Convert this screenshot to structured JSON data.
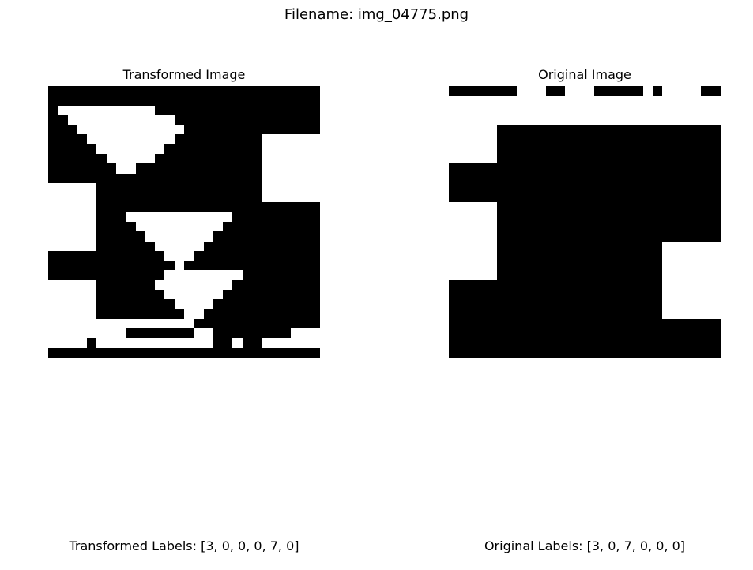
{
  "suptitle": "Filename: img_04775.png",
  "panels": {
    "transformed": {
      "title": "Transformed Image",
      "caption": "Transformed Labels: [3, 0, 0, 0, 7, 0]",
      "rows": [
        "1111111111111111111111111111",
        "1111111111111111111111111111",
        "1000000000011111111111111111",
        "1100000000000111111111111111",
        "1110000000000011111111111111",
        "1111000000000111111111000000",
        "1111100000001111111111000000",
        "1111110000011111111111000000",
        "1111111001111111111111000000",
        "1111111111111111111111000000",
        "0000011111111111111111000000",
        "0000011111111111111111000000",
        "0000011111111111111111111111",
        "0000011100000000000111111111",
        "0000011110000000001111111111",
        "0000011111000000011111111111",
        "0000011111100000111111111111",
        "1111111111110001111111111111",
        "1111111111111011111111111111",
        "1111111111110000000011111111",
        "0000011111100000000111111111",
        "0000011111110000001111111111",
        "0000011111111000011111111111",
        "0000011111111100111111111111",
        "0000000000000001111111111111",
        "0000000011111110011111111000",
        "0000100000000000011011000000",
        "1111111111111111111111111111"
      ]
    },
    "original": {
      "title": "Original Image",
      "caption": "Original Labels: [3, 0, 7, 0, 0, 0]",
      "rows": [
        "1111111000110001111101000011",
        "0000000000000000000000000000",
        "0000000000000000000000000000",
        "0000000000000000000000000000",
        "0000011111111111111111111111",
        "0000011111111111111111111111",
        "0000011111111111111111111111",
        "0000011111111111111111111111",
        "1111111111111111111111111111",
        "1111111111111111111111111111",
        "1111111111111111111111111111",
        "1111111111111111111111111111",
        "0000011111111111111111111111",
        "0000011111111111111111111111",
        "0000011111111111111111111111",
        "0000011111111111111111111111",
        "0000011111111111111111000000",
        "0000011111111111111111000000",
        "0000011111111111111111000000",
        "0000011111111111111111000000",
        "1111111111111111111111000000",
        "1111111111111111111111000000",
        "1111111111111111111111000000",
        "1111111111111111111111000000",
        "1111111111111111111111111111",
        "1111111111111111111111111111",
        "1111111111111111111111111111",
        "1111111111111111111111111111"
      ]
    }
  }
}
